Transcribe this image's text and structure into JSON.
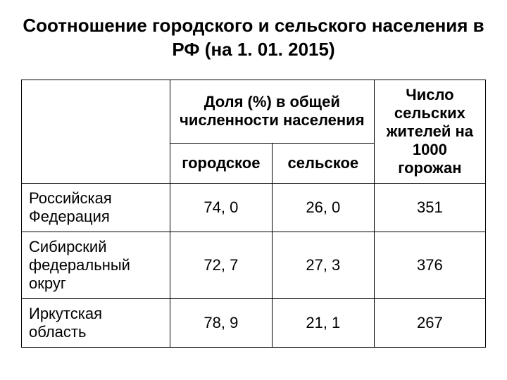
{
  "title": "Соотношение городского и сельского населения в РФ (на 1. 01. 2015)",
  "table": {
    "header": {
      "share_label": "Доля  (%) в общей численности населения",
      "rural_per_1000": "Число сельских жителей на 1000 горожан",
      "urban": "городское",
      "rural": "сельское"
    },
    "rows": [
      {
        "label": "Российская Федерация",
        "urban": "74, 0",
        "rural": "26, 0",
        "ratio": "351"
      },
      {
        "label": "Сибирский федеральный округ",
        "urban": "72, 7",
        "rural": "27, 3",
        "ratio": "376"
      },
      {
        "label": "Иркутская область",
        "urban": "78, 9",
        "rural": "21, 1",
        "ratio": "267"
      }
    ]
  },
  "style": {
    "background_color": "#ffffff",
    "text_color": "#000000",
    "border_color": "#000000",
    "title_fontsize": 26,
    "cell_fontsize": 22,
    "font_family": "Arial"
  }
}
